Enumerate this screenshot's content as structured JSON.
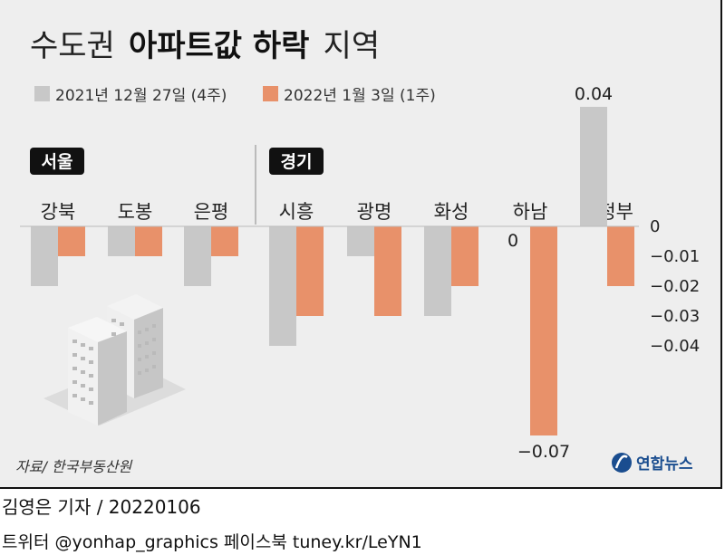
{
  "title": {
    "prefix": "수도권",
    "bold": "아파트값 하락",
    "suffix": "지역"
  },
  "source": "자료/ 한국부동산원",
  "logo": "연합뉴스",
  "footer": {
    "reporter": "김영은 기자 / 20220106",
    "social": "트위터 @yonhap_graphics  페이스북 tuney.kr/LeYN1"
  },
  "colors": {
    "series1": "#c8c8c8",
    "series2": "#e8916a",
    "region_tag": "#111111",
    "background": "#eeeeee"
  },
  "chart_data": {
    "type": "bar",
    "regions": [
      {
        "name": "서울",
        "categories": [
          "강북",
          "도봉",
          "은평"
        ]
      },
      {
        "name": "경기",
        "categories": [
          "시흥",
          "광명",
          "화성",
          "하남",
          "의정부"
        ]
      }
    ],
    "categories": [
      "강북",
      "도봉",
      "은평",
      "시흥",
      "광명",
      "화성",
      "하남",
      "의정부"
    ],
    "series": [
      {
        "name": "2021년 12월 27일 (4주)",
        "values": [
          -0.02,
          -0.01,
          -0.02,
          -0.04,
          -0.01,
          -0.03,
          0,
          0.04
        ]
      },
      {
        "name": "2022년 1월 3일 (1주)",
        "values": [
          -0.01,
          -0.01,
          -0.01,
          -0.03,
          -0.03,
          -0.02,
          -0.07,
          -0.02
        ]
      }
    ],
    "data_labels": [
      {
        "category": "하남",
        "series": 0,
        "text": "0"
      },
      {
        "category": "하남",
        "series": 1,
        "text": "−0.07"
      },
      {
        "category": "의정부",
        "series": 0,
        "text": "0.04"
      }
    ],
    "y_ticks": [
      0,
      -0.01,
      -0.02,
      -0.03,
      -0.04
    ],
    "y_tick_labels": [
      "0",
      "−0.01",
      "−0.02",
      "−0.03",
      "−0.04"
    ],
    "axis_position": "right",
    "legend_position": "top-left",
    "grid": false
  }
}
